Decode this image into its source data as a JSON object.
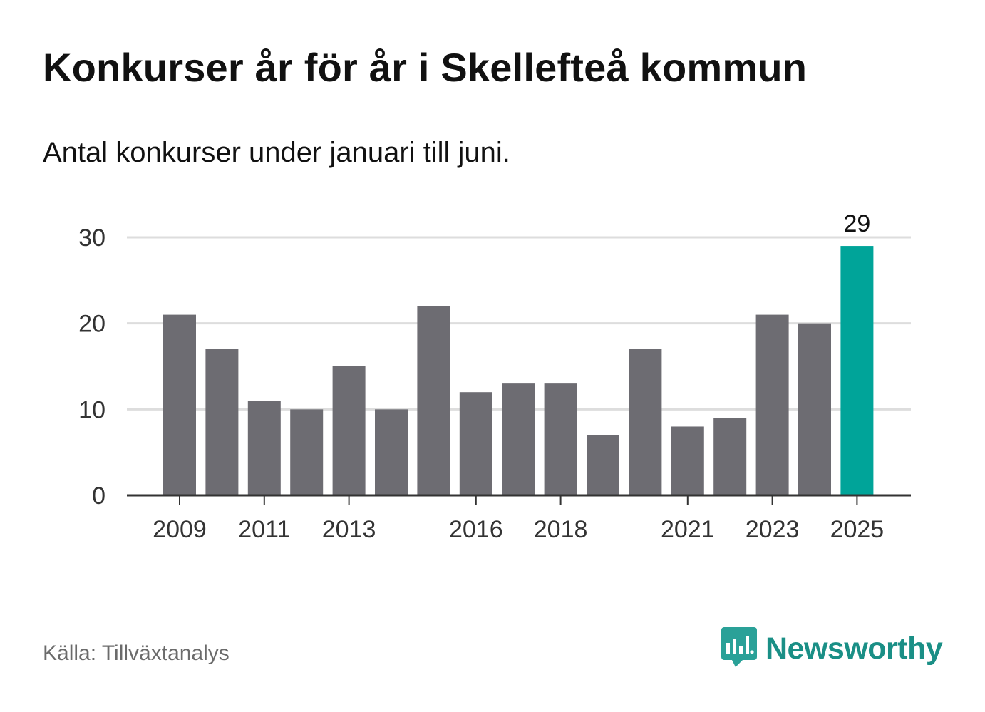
{
  "title": "Konkurser år för år i Skellefteå kommun",
  "subtitle": "Antal konkurser under januari till juni.",
  "source": "Källa: Tillväxtanalys",
  "brand": {
    "name": "Newsworthy",
    "icon": "newsworthy-logo-icon",
    "color": "#1a8f86"
  },
  "colors": {
    "bar": "#6d6c72",
    "highlight": "#00a499",
    "grid": "#dddddd",
    "axis": "#333333"
  },
  "chart_data": {
    "type": "bar",
    "title": "Konkurser år för år i Skellefteå kommun",
    "subtitle": "Antal konkurser under januari till juni.",
    "xlabel": "",
    "ylabel": "",
    "categories": [
      "2009",
      "2010",
      "2011",
      "2012",
      "2013",
      "2014",
      "2015",
      "2016",
      "2017",
      "2018",
      "2019",
      "2020",
      "2021",
      "2022",
      "2023",
      "2024",
      "2025"
    ],
    "values": [
      21,
      17,
      11,
      10,
      15,
      10,
      22,
      12,
      13,
      13,
      7,
      17,
      8,
      9,
      21,
      20,
      29
    ],
    "x_tick_labels": [
      "2009",
      "2011",
      "2013",
      "2016",
      "2018",
      "2021",
      "2023",
      "2025"
    ],
    "y_ticks": [
      0,
      10,
      20,
      30
    ],
    "ylim": [
      0,
      30
    ],
    "grid": true,
    "highlight_category": "2025",
    "data_labels": [
      {
        "category": "2025",
        "label": "29"
      }
    ]
  }
}
